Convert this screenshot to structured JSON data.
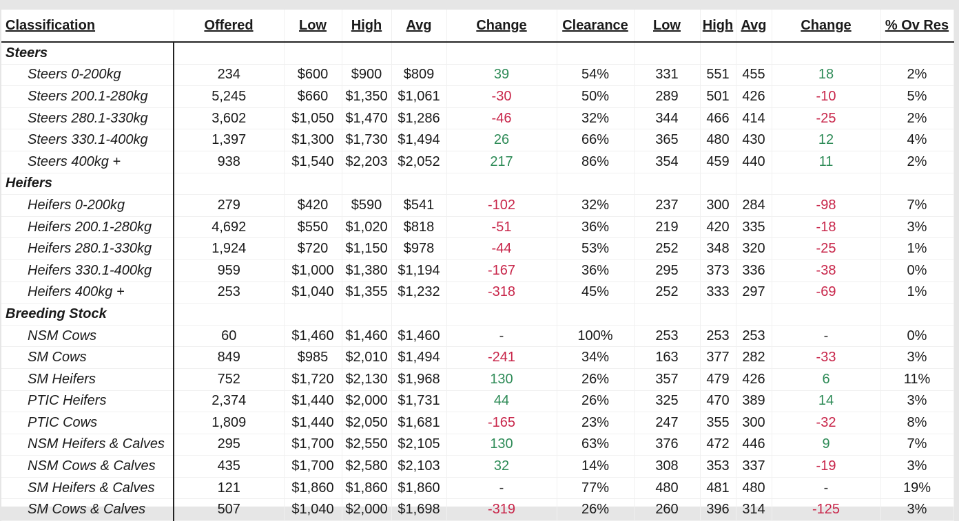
{
  "headers": [
    "Classification",
    "Offered",
    "Low",
    "High",
    "Avg",
    "Change",
    "Clearance",
    "Low",
    "High",
    "Avg",
    "Change",
    "% Ov Res"
  ],
  "colors": {
    "positive": "#2e8b57",
    "negative": "#c8264a"
  },
  "rows": [
    {
      "type": "group",
      "label": "Steers"
    },
    {
      "type": "item",
      "label": "Steers 0-200kg",
      "offered": "234",
      "low": "$600",
      "high": "$900",
      "avg": "$809",
      "change": "39",
      "change_dir": "pos",
      "clearance": "54%",
      "low2": "331",
      "high2": "551",
      "avg2": "455",
      "change2": "18",
      "change2_dir": "pos",
      "ov_res": "2%"
    },
    {
      "type": "item",
      "label": "Steers 200.1-280kg",
      "offered": "5,245",
      "low": "$660",
      "high": "$1,350",
      "avg": "$1,061",
      "change": "-30",
      "change_dir": "neg",
      "clearance": "50%",
      "low2": "289",
      "high2": "501",
      "avg2": "426",
      "change2": "-10",
      "change2_dir": "neg",
      "ov_res": "5%"
    },
    {
      "type": "item",
      "label": "Steers 280.1-330kg",
      "offered": "3,602",
      "low": "$1,050",
      "high": "$1,470",
      "avg": "$1,286",
      "change": "-46",
      "change_dir": "neg",
      "clearance": "32%",
      "low2": "344",
      "high2": "466",
      "avg2": "414",
      "change2": "-25",
      "change2_dir": "neg",
      "ov_res": "2%"
    },
    {
      "type": "item",
      "label": "Steers 330.1-400kg",
      "offered": "1,397",
      "low": "$1,300",
      "high": "$1,730",
      "avg": "$1,494",
      "change": "26",
      "change_dir": "pos",
      "clearance": "66%",
      "low2": "365",
      "high2": "480",
      "avg2": "430",
      "change2": "12",
      "change2_dir": "pos",
      "ov_res": "4%"
    },
    {
      "type": "item",
      "label": "Steers 400kg +",
      "offered": "938",
      "low": "$1,540",
      "high": "$2,203",
      "avg": "$2,052",
      "change": "217",
      "change_dir": "pos",
      "clearance": "86%",
      "low2": "354",
      "high2": "459",
      "avg2": "440",
      "change2": "11",
      "change2_dir": "pos",
      "ov_res": "2%"
    },
    {
      "type": "group",
      "label": "Heifers"
    },
    {
      "type": "item",
      "label": "Heifers 0-200kg",
      "offered": "279",
      "low": "$420",
      "high": "$590",
      "avg": "$541",
      "change": "-102",
      "change_dir": "neg",
      "clearance": "32%",
      "low2": "237",
      "high2": "300",
      "avg2": "284",
      "change2": "-98",
      "change2_dir": "neg",
      "ov_res": "7%"
    },
    {
      "type": "item",
      "label": "Heifers 200.1-280kg",
      "offered": "4,692",
      "low": "$550",
      "high": "$1,020",
      "avg": "$818",
      "change": "-51",
      "change_dir": "neg",
      "clearance": "36%",
      "low2": "219",
      "high2": "420",
      "avg2": "335",
      "change2": "-18",
      "change2_dir": "neg",
      "ov_res": "3%"
    },
    {
      "type": "item",
      "label": "Heifers 280.1-330kg",
      "offered": "1,924",
      "low": "$720",
      "high": "$1,150",
      "avg": "$978",
      "change": "-44",
      "change_dir": "neg",
      "clearance": "53%",
      "low2": "252",
      "high2": "348",
      "avg2": "320",
      "change2": "-25",
      "change2_dir": "neg",
      "ov_res": "1%"
    },
    {
      "type": "item",
      "label": "Heifers 330.1-400kg",
      "offered": "959",
      "low": "$1,000",
      "high": "$1,380",
      "avg": "$1,194",
      "change": "-167",
      "change_dir": "neg",
      "clearance": "36%",
      "low2": "295",
      "high2": "373",
      "avg2": "336",
      "change2": "-38",
      "change2_dir": "neg",
      "ov_res": "0%"
    },
    {
      "type": "item",
      "label": "Heifers 400kg +",
      "offered": "253",
      "low": "$1,040",
      "high": "$1,355",
      "avg": "$1,232",
      "change": "-318",
      "change_dir": "neg",
      "clearance": "45%",
      "low2": "252",
      "high2": "333",
      "avg2": "297",
      "change2": "-69",
      "change2_dir": "neg",
      "ov_res": "1%"
    },
    {
      "type": "group",
      "label": "Breeding Stock"
    },
    {
      "type": "item",
      "label": "NSM Cows",
      "offered": "60",
      "low": "$1,460",
      "high": "$1,460",
      "avg": "$1,460",
      "change": "-",
      "change_dir": "neu",
      "clearance": "100%",
      "low2": "253",
      "high2": "253",
      "avg2": "253",
      "change2": "-",
      "change2_dir": "neu",
      "ov_res": "0%"
    },
    {
      "type": "item",
      "label": "SM Cows",
      "offered": "849",
      "low": "$985",
      "high": "$2,010",
      "avg": "$1,494",
      "change": "-241",
      "change_dir": "neg",
      "clearance": "34%",
      "low2": "163",
      "high2": "377",
      "avg2": "282",
      "change2": "-33",
      "change2_dir": "neg",
      "ov_res": "3%"
    },
    {
      "type": "item",
      "label": "SM Heifers",
      "offered": "752",
      "low": "$1,720",
      "high": "$2,130",
      "avg": "$1,968",
      "change": "130",
      "change_dir": "pos",
      "clearance": "26%",
      "low2": "357",
      "high2": "479",
      "avg2": "426",
      "change2": "6",
      "change2_dir": "pos",
      "ov_res": "11%"
    },
    {
      "type": "item",
      "label": "PTIC Heifers",
      "offered": "2,374",
      "low": "$1,440",
      "high": "$2,000",
      "avg": "$1,731",
      "change": "44",
      "change_dir": "pos",
      "clearance": "26%",
      "low2": "325",
      "high2": "470",
      "avg2": "389",
      "change2": "14",
      "change2_dir": "pos",
      "ov_res": "3%"
    },
    {
      "type": "item",
      "label": "PTIC Cows",
      "offered": "1,809",
      "low": "$1,440",
      "high": "$2,050",
      "avg": "$1,681",
      "change": "-165",
      "change_dir": "neg",
      "clearance": "23%",
      "low2": "247",
      "high2": "355",
      "avg2": "300",
      "change2": "-32",
      "change2_dir": "neg",
      "ov_res": "8%"
    },
    {
      "type": "item",
      "label": "NSM Heifers & Calves",
      "offered": "295",
      "low": "$1,700",
      "high": "$2,550",
      "avg": "$2,105",
      "change": "130",
      "change_dir": "pos",
      "clearance": "63%",
      "low2": "376",
      "high2": "472",
      "avg2": "446",
      "change2": "9",
      "change2_dir": "pos",
      "ov_res": "7%"
    },
    {
      "type": "item",
      "label": "NSM Cows & Calves",
      "offered": "435",
      "low": "$1,700",
      "high": "$2,580",
      "avg": "$2,103",
      "change": "32",
      "change_dir": "pos",
      "clearance": "14%",
      "low2": "308",
      "high2": "353",
      "avg2": "337",
      "change2": "-19",
      "change2_dir": "neg",
      "ov_res": "3%"
    },
    {
      "type": "item",
      "label": "SM Heifers & Calves",
      "offered": "121",
      "low": "$1,860",
      "high": "$1,860",
      "avg": "$1,860",
      "change": "-",
      "change_dir": "neu",
      "clearance": "77%",
      "low2": "480",
      "high2": "481",
      "avg2": "480",
      "change2": "-",
      "change2_dir": "neu",
      "ov_res": "19%"
    },
    {
      "type": "item",
      "label": "SM Cows & Calves",
      "offered": "507",
      "low": "$1,040",
      "high": "$2,000",
      "avg": "$1,698",
      "change": "-319",
      "change_dir": "neg",
      "clearance": "26%",
      "low2": "260",
      "high2": "396",
      "avg2": "314",
      "change2": "-125",
      "change2_dir": "neg",
      "ov_res": "3%"
    }
  ]
}
